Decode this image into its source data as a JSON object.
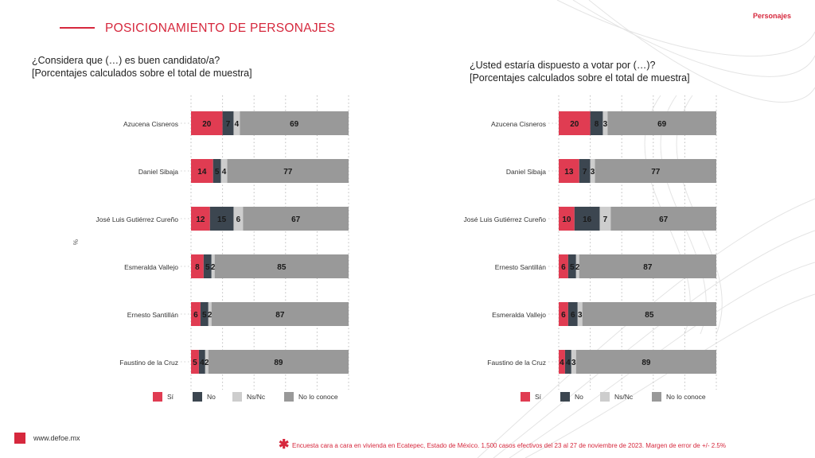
{
  "header": {
    "title": "POSICIONAMIENTO DE PERSONAJES",
    "section_tag": "Personajes"
  },
  "axis_unit": "%",
  "colors": {
    "si": "#e03c52",
    "no": "#3c4650",
    "nsnc": "#cdcdcd",
    "nolo": "#999999",
    "accent": "#d6283d"
  },
  "chart_data": [
    {
      "type": "bar",
      "stacked": true,
      "orientation": "horizontal",
      "title_line1": "¿Considera que (…) es buen candidato/a?",
      "title_line2": "[Porcentajes calculados sobre el total de muestra]",
      "categories": [
        "Azucena Cisneros",
        "Daniel Sibaja",
        "José Luis Gutiérrez Cureño",
        "Esmeralda Vallejo",
        "Ernesto Santillán",
        "Faustino de la Cruz"
      ],
      "series": [
        {
          "name": "Sí",
          "color": "#e03c52",
          "values": [
            20,
            14,
            12,
            8,
            6,
            5
          ]
        },
        {
          "name": "No",
          "color": "#3c4650",
          "values": [
            7,
            5,
            15,
            5,
            5,
            4
          ]
        },
        {
          "name": "Ns/Nc",
          "color": "#cdcdcd",
          "values": [
            4,
            4,
            6,
            2,
            2,
            2
          ]
        },
        {
          "name": "No lo conoce",
          "color": "#999999",
          "values": [
            69,
            77,
            67,
            85,
            87,
            89
          ]
        }
      ],
      "xlim": [
        0,
        100
      ],
      "grid": true,
      "legend_position": "bottom"
    },
    {
      "type": "bar",
      "stacked": true,
      "orientation": "horizontal",
      "title_line1": "¿Usted estaría dispuesto a votar por (…)?",
      "title_line2": "[Porcentajes calculados sobre el total de muestra]",
      "categories": [
        "Azucena Cisneros",
        "Daniel Sibaja",
        "José Luis Gutiérrez Cureño",
        "Ernesto Santillán",
        "Esmeralda Vallejo",
        "Faustino de la Cruz"
      ],
      "series": [
        {
          "name": "Sí",
          "color": "#e03c52",
          "values": [
            20,
            13,
            10,
            6,
            6,
            4
          ]
        },
        {
          "name": "No",
          "color": "#3c4650",
          "values": [
            8,
            7,
            16,
            5,
            6,
            4
          ]
        },
        {
          "name": "Ns/Nc",
          "color": "#cdcdcd",
          "values": [
            3,
            3,
            7,
            2,
            3,
            3
          ]
        },
        {
          "name": "No lo conoce",
          "color": "#999999",
          "values": [
            69,
            77,
            67,
            87,
            85,
            89
          ]
        }
      ],
      "xlim": [
        0,
        100
      ],
      "grid": true,
      "legend_position": "bottom"
    }
  ],
  "footer": {
    "url": "www.defoe.mx",
    "star": "✱",
    "note": "Encuesta cara a cara en vivienda en Ecatepec, Estado de México. 1,500 casos efectivos del 23 al 27 de noviembre de 2023. Margen de error de +/- 2.5%"
  }
}
